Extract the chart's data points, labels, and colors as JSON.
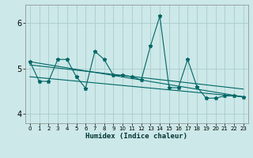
{
  "xlabel": "Humidex (Indice chaleur)",
  "ylabel": "",
  "bg_color": "#cce8e8",
  "grid_color": "#aacccc",
  "line_color": "#006666",
  "xlim": [
    -0.5,
    23.5
  ],
  "ylim": [
    3.8,
    6.4
  ],
  "yticks": [
    4,
    5,
    6
  ],
  "xticks": [
    0,
    1,
    2,
    3,
    4,
    5,
    6,
    7,
    8,
    9,
    10,
    11,
    12,
    13,
    14,
    15,
    16,
    17,
    18,
    19,
    20,
    21,
    22,
    23
  ],
  "main_x": [
    0,
    1,
    2,
    3,
    4,
    5,
    6,
    7,
    8,
    9,
    10,
    11,
    12,
    13,
    14,
    15,
    16,
    17,
    18,
    19,
    20,
    21,
    22,
    23
  ],
  "main_y": [
    5.15,
    4.72,
    4.72,
    5.2,
    5.2,
    4.82,
    4.57,
    5.38,
    5.2,
    4.85,
    4.85,
    4.82,
    4.75,
    5.5,
    6.15,
    4.58,
    4.58,
    5.2,
    4.6,
    4.35,
    4.35,
    4.4,
    4.4,
    4.38
  ],
  "trend1_x": [
    0,
    23
  ],
  "trend1_y": [
    5.15,
    4.38
  ],
  "trend2_x": [
    0,
    23
  ],
  "trend2_y": [
    5.08,
    4.55
  ],
  "trend3_x": [
    0,
    23
  ],
  "trend3_y": [
    4.82,
    4.38
  ]
}
